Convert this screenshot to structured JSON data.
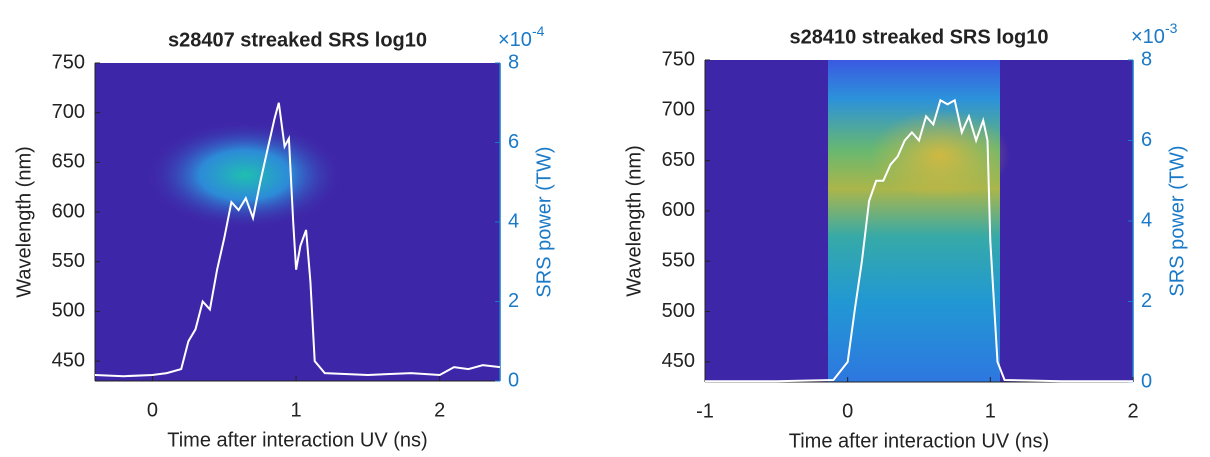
{
  "chart_data": [
    {
      "type": "line",
      "title": "s28407 streaked SRS log10",
      "xlabel": "Time after interaction UV (ns)",
      "ylabel": "Wavelength (nm)",
      "y2label": "SRS power (TW)",
      "y2_multiplier_base": "×10",
      "y2_multiplier_exponent": "-4",
      "xlim": [
        -0.4,
        2.42
      ],
      "xticks": [
        0,
        1,
        2
      ],
      "ylim": [
        430,
        750
      ],
      "yticks": [
        450,
        500,
        550,
        600,
        650,
        700,
        750
      ],
      "y2lim": [
        0,
        8
      ],
      "y2ticks": [
        0,
        2,
        4,
        6,
        8
      ],
      "x": [
        -0.4,
        -0.2,
        0,
        0.1,
        0.2,
        0.25,
        0.3,
        0.35,
        0.4,
        0.45,
        0.5,
        0.55,
        0.6,
        0.65,
        0.7,
        0.75,
        0.8,
        0.85,
        0.88,
        0.92,
        0.95,
        0.98,
        1.0,
        1.03,
        1.07,
        1.1,
        1.13,
        1.2,
        1.5,
        1.8,
        2.0,
        2.1,
        2.2,
        2.3,
        2.42
      ],
      "series": [
        {
          "color": "#ffffff",
          "axis": "y2",
          "values": [
            0.15,
            0.12,
            0.15,
            0.2,
            0.3,
            1.0,
            1.3,
            2.0,
            1.8,
            2.8,
            3.6,
            4.5,
            4.3,
            4.6,
            4.1,
            5.0,
            5.8,
            6.6,
            7.0,
            5.9,
            6.1,
            4.0,
            2.8,
            3.4,
            3.8,
            2.5,
            0.5,
            0.2,
            0.15,
            0.2,
            0.15,
            0.35,
            0.3,
            0.4,
            0.35
          ]
        }
      ]
    },
    {
      "type": "line",
      "title": "s28410 streaked SRS log10",
      "xlabel": "Time after interaction UV (ns)",
      "ylabel": "Wavelength (nm)",
      "y2label": "SRS power (TW)",
      "y2_multiplier_base": "×10",
      "y2_multiplier_exponent": "-3",
      "xlim": [
        -1,
        2
      ],
      "xticks": [
        -1,
        0,
        1,
        2
      ],
      "ylim": [
        430,
        750
      ],
      "yticks": [
        450,
        500,
        550,
        600,
        650,
        700,
        750
      ],
      "y2lim": [
        0,
        8
      ],
      "y2ticks": [
        0,
        2,
        4,
        6,
        8
      ],
      "x": [
        -1,
        -0.5,
        -0.1,
        0,
        0.05,
        0.1,
        0.15,
        0.2,
        0.25,
        0.3,
        0.35,
        0.4,
        0.45,
        0.5,
        0.55,
        0.6,
        0.65,
        0.7,
        0.75,
        0.8,
        0.85,
        0.9,
        0.95,
        0.98,
        1.0,
        1.05,
        1.1,
        1.5,
        2
      ],
      "series": [
        {
          "color": "#ffffff",
          "axis": "y2",
          "values": [
            0.02,
            0.02,
            0.05,
            0.5,
            1.8,
            3.0,
            4.5,
            5.0,
            5.0,
            5.4,
            5.6,
            6.0,
            6.2,
            6.0,
            6.6,
            6.4,
            7.0,
            6.9,
            7.0,
            6.2,
            6.6,
            6.0,
            6.5,
            6.0,
            3.5,
            0.5,
            0.05,
            0.02,
            0.02
          ]
        }
      ]
    }
  ]
}
